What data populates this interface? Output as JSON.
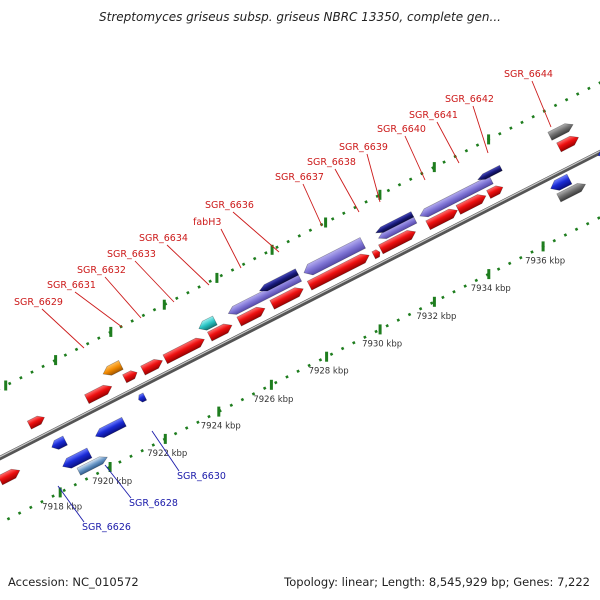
{
  "title": "Streptomyces griseus subsp. griseus NBRC 13350, complete gen...",
  "footer": {
    "accession": "Accession: NC_010572",
    "info": "Topology: linear; Length: 8,545,929 bp; Genes: 7,222"
  },
  "scale_labels": [
    "7918 kbp",
    "7920 kbp",
    "7922 kbp",
    "7924 kbp",
    "7926 kbp",
    "7928 kbp",
    "7930 kbp",
    "7932 kbp",
    "7934 kbp",
    "7936 kbp"
  ],
  "top_labels": [
    "SGR_6629",
    "SGR_6631",
    "SGR_6632",
    "SGR_6633",
    "SGR_6634",
    "fabH3",
    "SGR_6636",
    "SGR_6637",
    "SGR_6638",
    "SGR_6639",
    "SGR_6640",
    "SGR_6641",
    "SGR_6642",
    "SGR_6644"
  ],
  "bottom_labels": [
    "SGR_6626",
    "SGR_6628",
    "SGR_6630"
  ],
  "colors": {
    "forward_gene": "#e8141b",
    "reverse_gene": "#1a2bd6",
    "label_top": "#cc1a1a",
    "label_bottom": "#1a1aaa",
    "dots": "#1e7d1e",
    "axis": "#888888",
    "operon_light": "#8076d6",
    "operon_dark": "#17197a",
    "cyan": "#29c4c4",
    "orange": "#f28a00",
    "gray": "#6e6e6e",
    "steel": "#6a98c8"
  }
}
